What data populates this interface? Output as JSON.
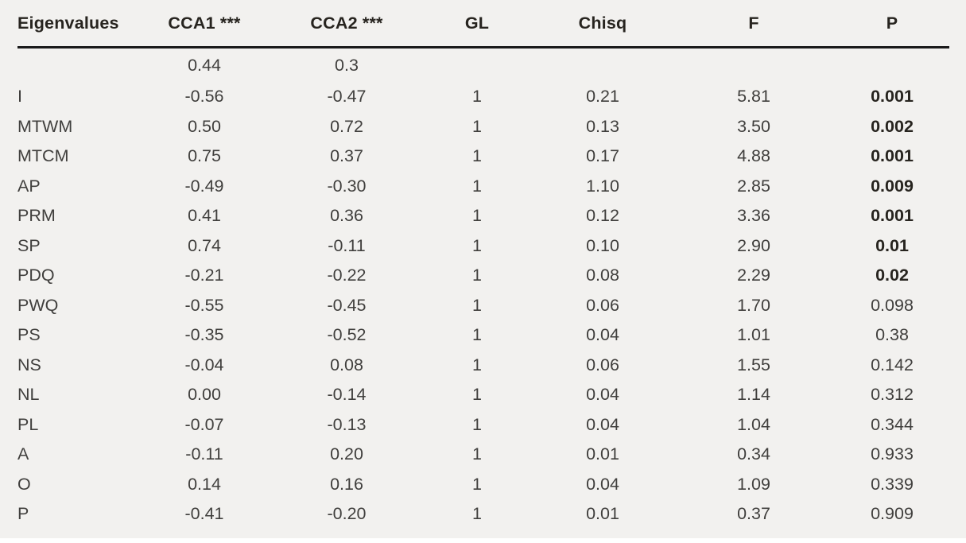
{
  "table": {
    "columns": [
      "Eigenvalues",
      "CCA1 ***",
      "CCA2 ***",
      "GL",
      "Chisq",
      "F",
      "P"
    ],
    "rows": [
      {
        "label": "",
        "cca1": "0.44",
        "cca2": "0.3",
        "gl": "",
        "chisq": "",
        "f": "",
        "p": "",
        "p_bold": false
      },
      {
        "label": "I",
        "cca1": "-0.56",
        "cca2": "-0.47",
        "gl": "1",
        "chisq": "0.21",
        "f": "5.81",
        "p": "0.001",
        "p_bold": true
      },
      {
        "label": "MTWM",
        "cca1": "0.50",
        "cca2": "0.72",
        "gl": "1",
        "chisq": "0.13",
        "f": "3.50",
        "p": "0.002",
        "p_bold": true
      },
      {
        "label": "MTCM",
        "cca1": "0.75",
        "cca2": "0.37",
        "gl": "1",
        "chisq": "0.17",
        "f": "4.88",
        "p": "0.001",
        "p_bold": true
      },
      {
        "label": "AP",
        "cca1": "-0.49",
        "cca2": "-0.30",
        "gl": "1",
        "chisq": "1.10",
        "f": "2.85",
        "p": "0.009",
        "p_bold": true
      },
      {
        "label": "PRM",
        "cca1": "0.41",
        "cca2": "0.36",
        "gl": "1",
        "chisq": "0.12",
        "f": "3.36",
        "p": "0.001",
        "p_bold": true
      },
      {
        "label": "SP",
        "cca1": "0.74",
        "cca2": "-0.11",
        "gl": "1",
        "chisq": "0.10",
        "f": "2.90",
        "p": "0.01",
        "p_bold": true
      },
      {
        "label": "PDQ",
        "cca1": "-0.21",
        "cca2": "-0.22",
        "gl": "1",
        "chisq": "0.08",
        "f": "2.29",
        "p": "0.02",
        "p_bold": true
      },
      {
        "label": "PWQ",
        "cca1": "-0.55",
        "cca2": "-0.45",
        "gl": "1",
        "chisq": "0.06",
        "f": "1.70",
        "p": "0.098",
        "p_bold": false
      },
      {
        "label": "PS",
        "cca1": "-0.35",
        "cca2": "-0.52",
        "gl": "1",
        "chisq": "0.04",
        "f": "1.01",
        "p": "0.38",
        "p_bold": false
      },
      {
        "label": "NS",
        "cca1": "-0.04",
        "cca2": "0.08",
        "gl": "1",
        "chisq": "0.06",
        "f": "1.55",
        "p": "0.142",
        "p_bold": false
      },
      {
        "label": "NL",
        "cca1": "0.00",
        "cca2": "-0.14",
        "gl": "1",
        "chisq": "0.04",
        "f": "1.14",
        "p": "0.312",
        "p_bold": false
      },
      {
        "label": "PL",
        "cca1": "-0.07",
        "cca2": "-0.13",
        "gl": "1",
        "chisq": "0.04",
        "f": "1.04",
        "p": "0.344",
        "p_bold": false
      },
      {
        "label": "A",
        "cca1": "-0.11",
        "cca2": "0.20",
        "gl": "1",
        "chisq": "0.01",
        "f": "0.34",
        "p": "0.933",
        "p_bold": false
      },
      {
        "label": "O",
        "cca1": "0.14",
        "cca2": "0.16",
        "gl": "1",
        "chisq": "0.04",
        "f": "1.09",
        "p": "0.339",
        "p_bold": false
      },
      {
        "label": "P",
        "cca1": "-0.41",
        "cca2": "-0.20",
        "gl": "1",
        "chisq": "0.01",
        "f": "0.37",
        "p": "0.909",
        "p_bold": false
      }
    ],
    "colors": {
      "background": "#f2f1ef",
      "body_text": "#403f3d",
      "header_text": "#27241f",
      "rule": "#1a1a1a"
    }
  }
}
